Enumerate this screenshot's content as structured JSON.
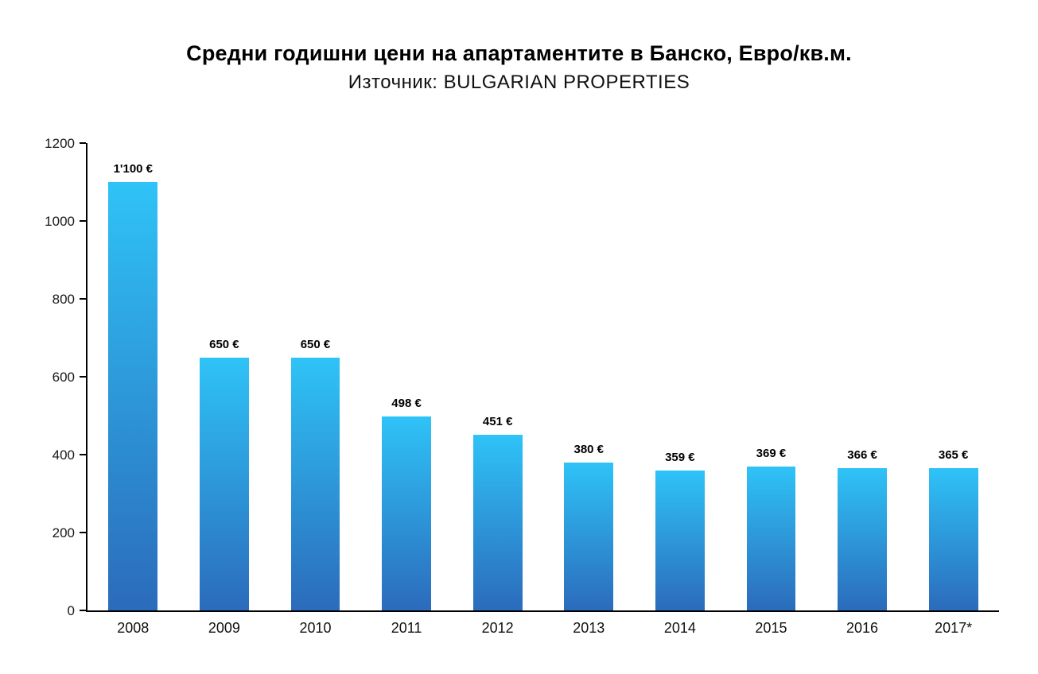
{
  "header": {
    "title": "Средни годишни цени на апартаментите в Банско, Евро/кв.м.",
    "subtitle": "Източник: BULGARIAN PROPERTIES"
  },
  "chart_data": {
    "type": "bar",
    "title": "Средни годишни цени на апартаментите в Банско, Евро/кв.м.",
    "subtitle": "Източник: BULGARIAN PROPERTIES",
    "categories": [
      "2008",
      "2009",
      "2010",
      "2011",
      "2012",
      "2013",
      "2014",
      "2015",
      "2016",
      "2017*"
    ],
    "values": [
      1100,
      650,
      650,
      498,
      451,
      380,
      359,
      369,
      366,
      365
    ],
    "value_labels": [
      "1'100 €",
      "650 €",
      "650 €",
      "498 €",
      "451 €",
      "380 €",
      "359 €",
      "369 €",
      "366 €",
      "365 €"
    ],
    "xlabel": "",
    "ylabel": "",
    "ylim": [
      0,
      1200
    ],
    "yticks": [
      0,
      200,
      400,
      600,
      800,
      1000,
      1200
    ],
    "grid": false,
    "legend": null,
    "colors": {
      "bar_gradient_top": "#2fc3f7",
      "bar_gradient_bottom": "#2b6bbb",
      "axis": "#000000",
      "text": "#111111"
    }
  }
}
